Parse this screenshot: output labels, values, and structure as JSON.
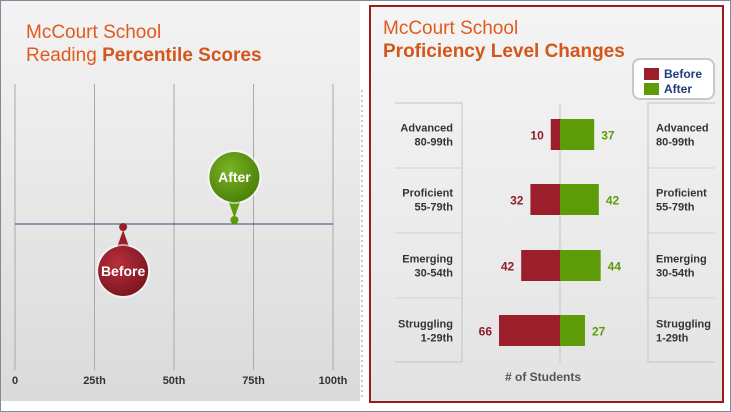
{
  "left_panel": {
    "title_line1": "McCourt School",
    "title_line2_plain": "Reading ",
    "title_line2_bold": "Percentile Scores"
  },
  "right_panel": {
    "title_line1": "McCourt School",
    "title_line2_bold": "Proficiency Level Changes"
  },
  "colors": {
    "before": "#9b1f2a",
    "after": "#5d9b09",
    "title_orange": "#e15a1e",
    "frame_red": "#9b1b1f"
  },
  "chart_data": [
    {
      "type": "scatter",
      "title": "McCourt School Reading Percentile Scores",
      "xlim": [
        0,
        100
      ],
      "x_ticks": [
        "0",
        "25th",
        "50th",
        "75th",
        "100th"
      ],
      "grid": true,
      "markers": [
        {
          "label": "Before",
          "x": 34
        },
        {
          "label": "After",
          "x": 69
        }
      ]
    },
    {
      "type": "bar",
      "title": "McCourt School Proficiency Level Changes",
      "xlabel": "# of Students",
      "categories": [
        {
          "name": "Advanced",
          "range": "80-99th"
        },
        {
          "name": "Proficient",
          "range": "55-79th"
        },
        {
          "name": "Emerging",
          "range": "30-54th"
        },
        {
          "name": "Struggling",
          "range": "1-29th"
        }
      ],
      "series": [
        {
          "name": "Before",
          "values": [
            10,
            32,
            42,
            66
          ]
        },
        {
          "name": "After",
          "values": [
            37,
            42,
            44,
            27
          ]
        }
      ],
      "legend": "top-right"
    }
  ]
}
